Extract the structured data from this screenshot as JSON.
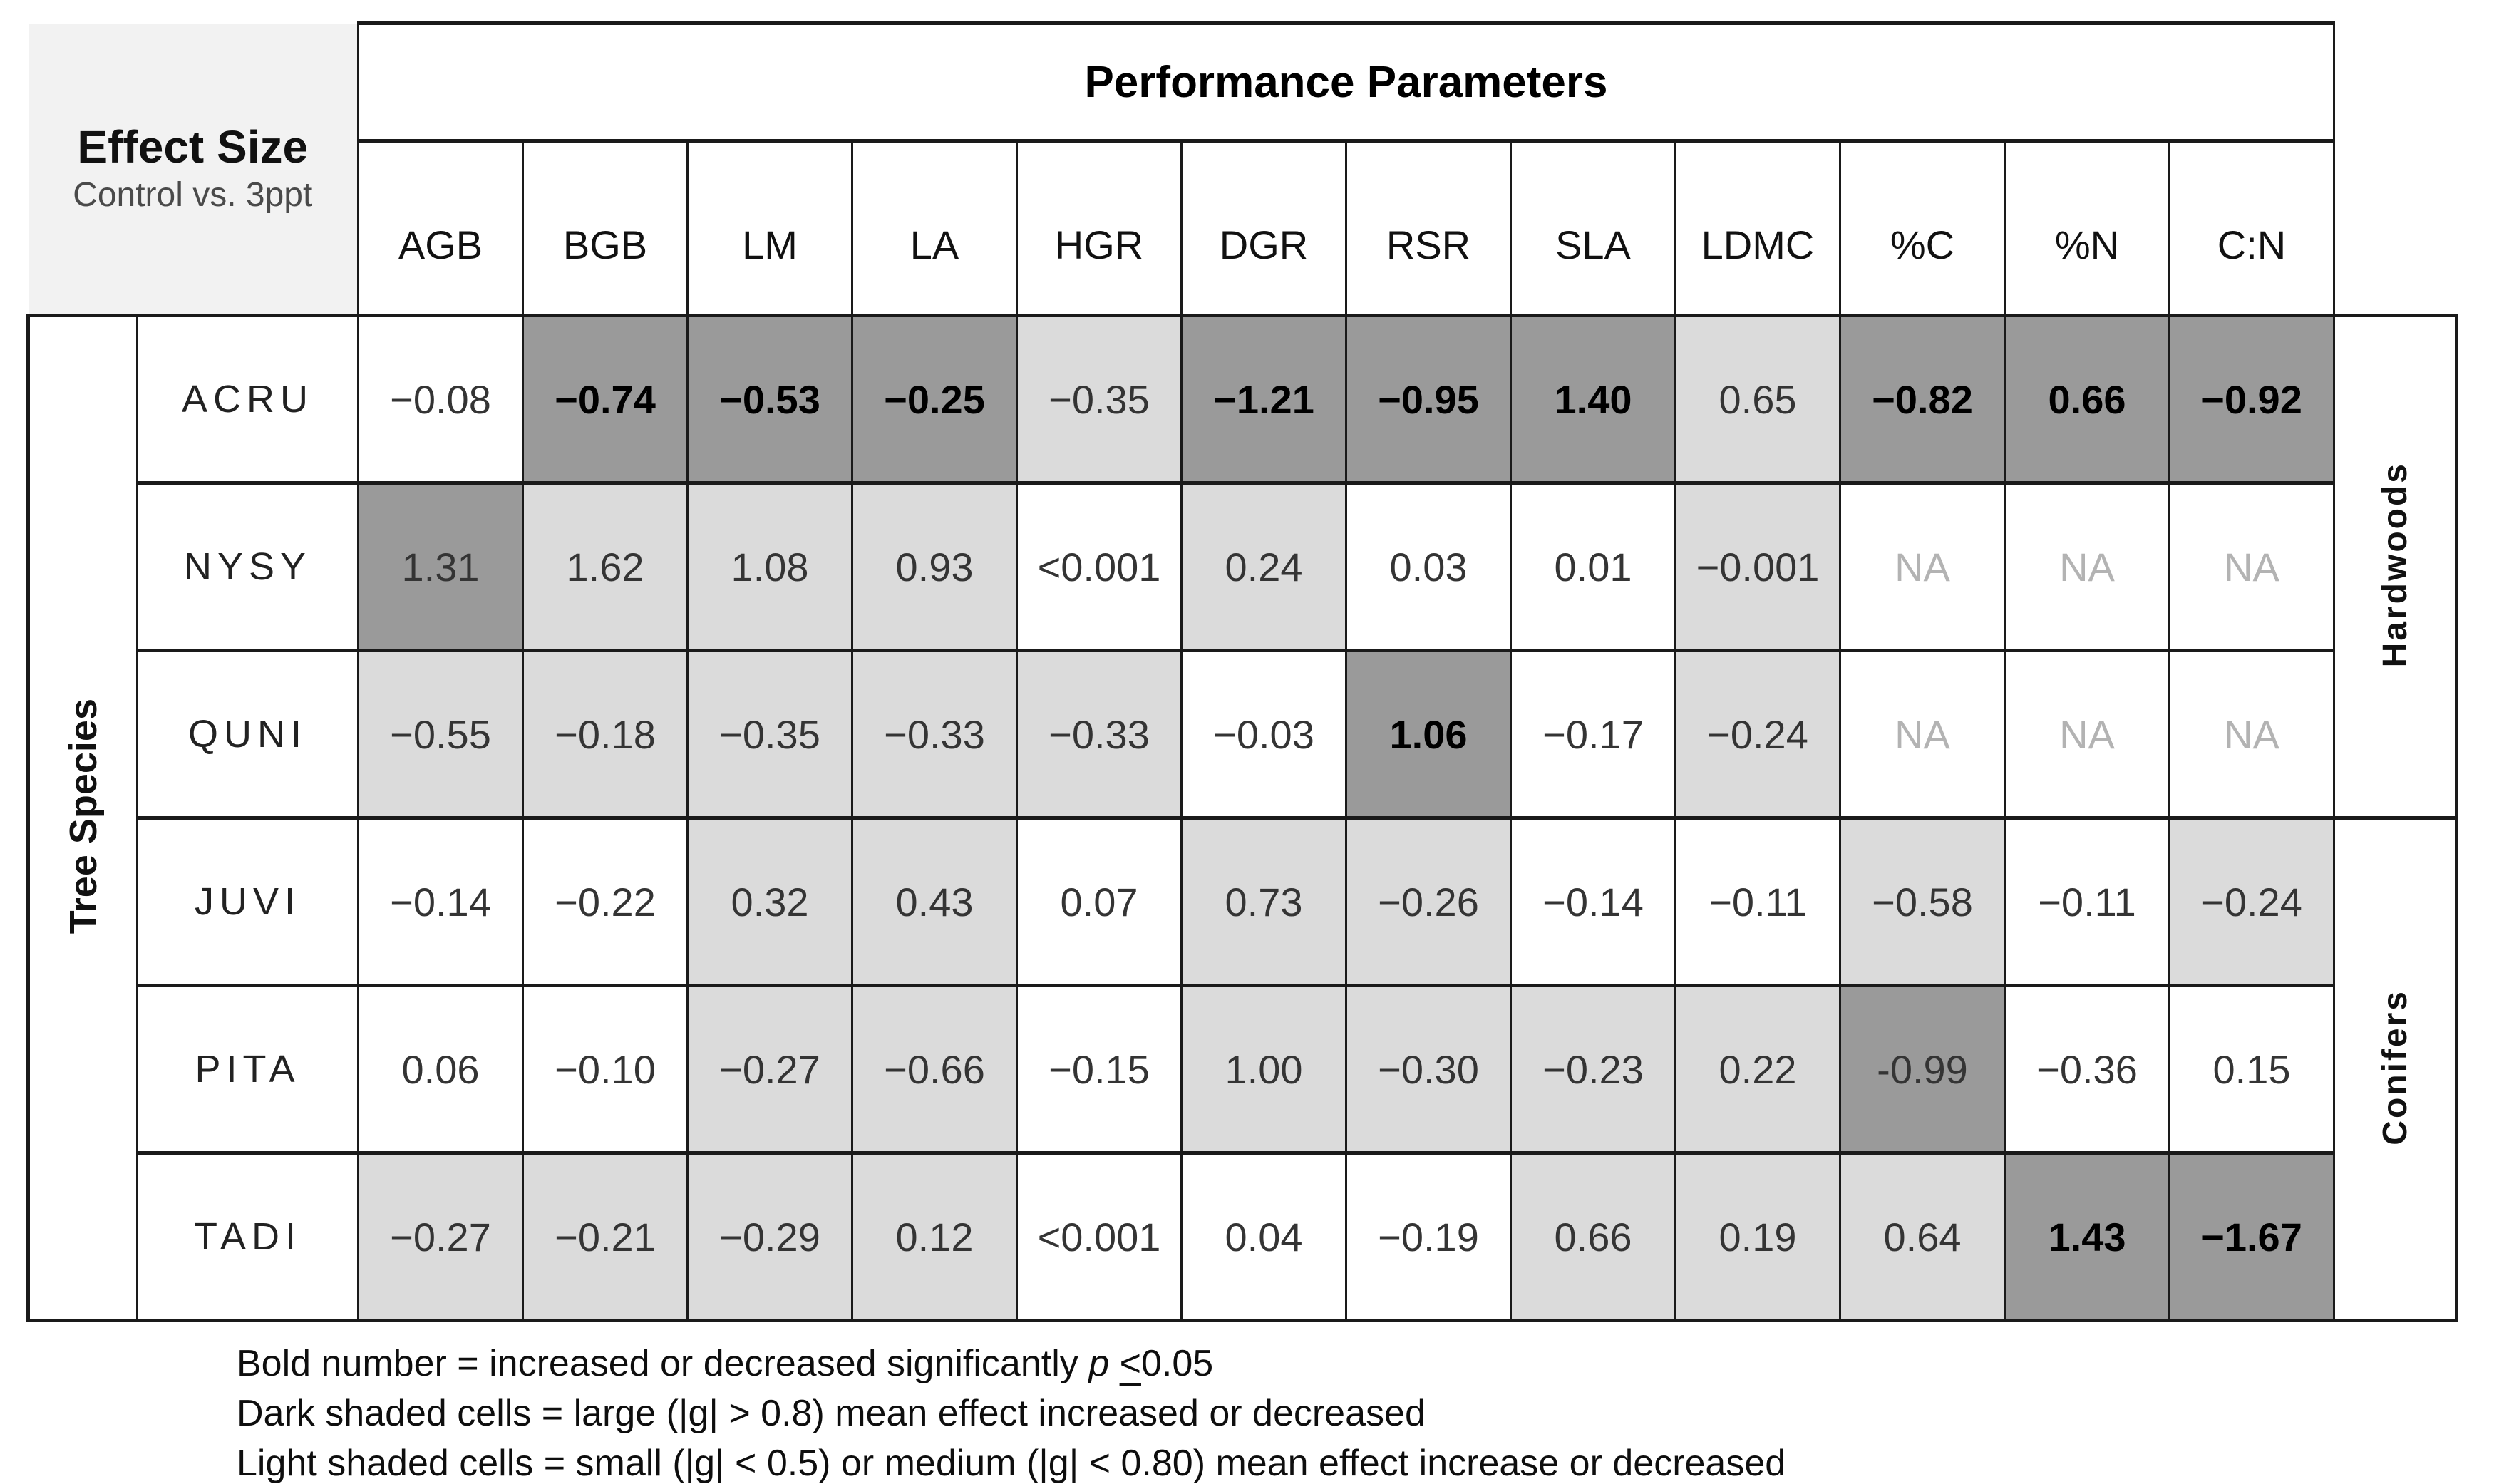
{
  "header": {
    "title": "Performance Parameters"
  },
  "corner": {
    "title": "Effect Size",
    "subtitle": "Control vs. 3ppt"
  },
  "axes": {
    "rows_label": "Tree Species"
  },
  "groups": [
    {
      "label": "Hardwoods",
      "rows": [
        "ACRU",
        "NYSY",
        "QUNI"
      ]
    },
    {
      "label": "Conifers",
      "rows": [
        "JUVI",
        "PITA",
        "TADI"
      ]
    }
  ],
  "legend": {
    "line1_prefix": "Bold number = increased or decreased significantly ",
    "line1_p": "p",
    "line1_le": "<",
    "line1_value": "0.05",
    "line2": "Dark shaded cells = large (|g| > 0.8) mean effect increased or decreased",
    "line3": "Light shaded cells = small (|g| < 0.5) or medium (|g| < 0.80) mean effect increase or decreased"
  },
  "colors": {
    "dark_cell": "#9a9a9a",
    "light_cell": "#dbdbdb",
    "corner_bg": "#f2f2f2",
    "border": "#1a1a1a",
    "na_text": "#b3b3b3"
  },
  "chart_data": {
    "type": "heatmap",
    "title": "Effect Size Control vs. 3ppt",
    "columns": [
      "AGB",
      "BGB",
      "LM",
      "LA",
      "HGR",
      "DGR",
      "RSR",
      "SLA",
      "LDMC",
      "%C",
      "%N",
      "C:N"
    ],
    "rows": [
      {
        "species": "ACRU",
        "group": "Hardwoods",
        "cells": [
          {
            "v": "−0.08",
            "shade": "none",
            "bold": false
          },
          {
            "v": "−0.74",
            "shade": "dark",
            "bold": true
          },
          {
            "v": "−0.53",
            "shade": "dark",
            "bold": true
          },
          {
            "v": "−0.25",
            "shade": "dark",
            "bold": true
          },
          {
            "v": "−0.35",
            "shade": "light",
            "bold": false
          },
          {
            "v": "−1.21",
            "shade": "dark",
            "bold": true
          },
          {
            "v": "−0.95",
            "shade": "dark",
            "bold": true
          },
          {
            "v": "1.40",
            "shade": "dark",
            "bold": true
          },
          {
            "v": "0.65",
            "shade": "light",
            "bold": false
          },
          {
            "v": "−0.82",
            "shade": "dark",
            "bold": true
          },
          {
            "v": "0.66",
            "shade": "dark",
            "bold": true
          },
          {
            "v": "−0.92",
            "shade": "dark",
            "bold": true
          }
        ]
      },
      {
        "species": "NYSY",
        "group": "Hardwoods",
        "cells": [
          {
            "v": "1.31",
            "shade": "dark",
            "bold": false
          },
          {
            "v": "1.62",
            "shade": "light",
            "bold": false
          },
          {
            "v": "1.08",
            "shade": "light",
            "bold": false
          },
          {
            "v": "0.93",
            "shade": "light",
            "bold": false
          },
          {
            "v": "<0.001",
            "shade": "none",
            "bold": false
          },
          {
            "v": "0.24",
            "shade": "light",
            "bold": false
          },
          {
            "v": "0.03",
            "shade": "none",
            "bold": false
          },
          {
            "v": "0.01",
            "shade": "none",
            "bold": false
          },
          {
            "v": "−0.001",
            "shade": "light",
            "bold": false
          },
          {
            "v": "NA",
            "shade": "none",
            "bold": false,
            "na": true
          },
          {
            "v": "NA",
            "shade": "none",
            "bold": false,
            "na": true
          },
          {
            "v": "NA",
            "shade": "none",
            "bold": false,
            "na": true
          }
        ]
      },
      {
        "species": "QUNI",
        "group": "Hardwoods",
        "cells": [
          {
            "v": "−0.55",
            "shade": "light",
            "bold": false
          },
          {
            "v": "−0.18",
            "shade": "light",
            "bold": false
          },
          {
            "v": "−0.35",
            "shade": "light",
            "bold": false
          },
          {
            "v": "−0.33",
            "shade": "light",
            "bold": false
          },
          {
            "v": "−0.33",
            "shade": "light",
            "bold": false
          },
          {
            "v": "−0.03",
            "shade": "none",
            "bold": false
          },
          {
            "v": "1.06",
            "shade": "dark",
            "bold": true
          },
          {
            "v": "−0.17",
            "shade": "none",
            "bold": false
          },
          {
            "v": "−0.24",
            "shade": "light",
            "bold": false
          },
          {
            "v": "NA",
            "shade": "none",
            "bold": false,
            "na": true
          },
          {
            "v": "NA",
            "shade": "none",
            "bold": false,
            "na": true
          },
          {
            "v": "NA",
            "shade": "none",
            "bold": false,
            "na": true
          }
        ]
      },
      {
        "species": "JUVI",
        "group": "Conifers",
        "cells": [
          {
            "v": "−0.14",
            "shade": "none",
            "bold": false
          },
          {
            "v": "−0.22",
            "shade": "none",
            "bold": false
          },
          {
            "v": "0.32",
            "shade": "light",
            "bold": false
          },
          {
            "v": "0.43",
            "shade": "light",
            "bold": false
          },
          {
            "v": "0.07",
            "shade": "none",
            "bold": false
          },
          {
            "v": "0.73",
            "shade": "light",
            "bold": false
          },
          {
            "v": "−0.26",
            "shade": "light",
            "bold": false
          },
          {
            "v": "−0.14",
            "shade": "none",
            "bold": false
          },
          {
            "v": "−0.11",
            "shade": "none",
            "bold": false
          },
          {
            "v": "−0.58",
            "shade": "light",
            "bold": false
          },
          {
            "v": "−0.11",
            "shade": "none",
            "bold": false
          },
          {
            "v": "−0.24",
            "shade": "light",
            "bold": false
          }
        ]
      },
      {
        "species": "PITA",
        "group": "Conifers",
        "cells": [
          {
            "v": "0.06",
            "shade": "none",
            "bold": false
          },
          {
            "v": "−0.10",
            "shade": "none",
            "bold": false
          },
          {
            "v": "−0.27",
            "shade": "light",
            "bold": false
          },
          {
            "v": "−0.66",
            "shade": "light",
            "bold": false
          },
          {
            "v": "−0.15",
            "shade": "none",
            "bold": false
          },
          {
            "v": "1.00",
            "shade": "light",
            "bold": false
          },
          {
            "v": "−0.30",
            "shade": "light",
            "bold": false
          },
          {
            "v": "−0.23",
            "shade": "light",
            "bold": false
          },
          {
            "v": "0.22",
            "shade": "light",
            "bold": false
          },
          {
            "v": "-0.99",
            "shade": "dark",
            "bold": false
          },
          {
            "v": "−0.36",
            "shade": "none",
            "bold": false
          },
          {
            "v": "0.15",
            "shade": "none",
            "bold": false
          }
        ]
      },
      {
        "species": "TADI",
        "group": "Conifers",
        "cells": [
          {
            "v": "−0.27",
            "shade": "light",
            "bold": false
          },
          {
            "v": "−0.21",
            "shade": "light",
            "bold": false
          },
          {
            "v": "−0.29",
            "shade": "light",
            "bold": false
          },
          {
            "v": "0.12",
            "shade": "light",
            "bold": false
          },
          {
            "v": "<0.001",
            "shade": "none",
            "bold": false
          },
          {
            "v": "0.04",
            "shade": "none",
            "bold": false
          },
          {
            "v": "−0.19",
            "shade": "none",
            "bold": false
          },
          {
            "v": "0.66",
            "shade": "light",
            "bold": false
          },
          {
            "v": "0.19",
            "shade": "light",
            "bold": false
          },
          {
            "v": "0.64",
            "shade": "light",
            "bold": false
          },
          {
            "v": "1.43",
            "shade": "dark",
            "bold": true
          },
          {
            "v": "−1.67",
            "shade": "dark",
            "bold": true
          }
        ]
      }
    ]
  }
}
